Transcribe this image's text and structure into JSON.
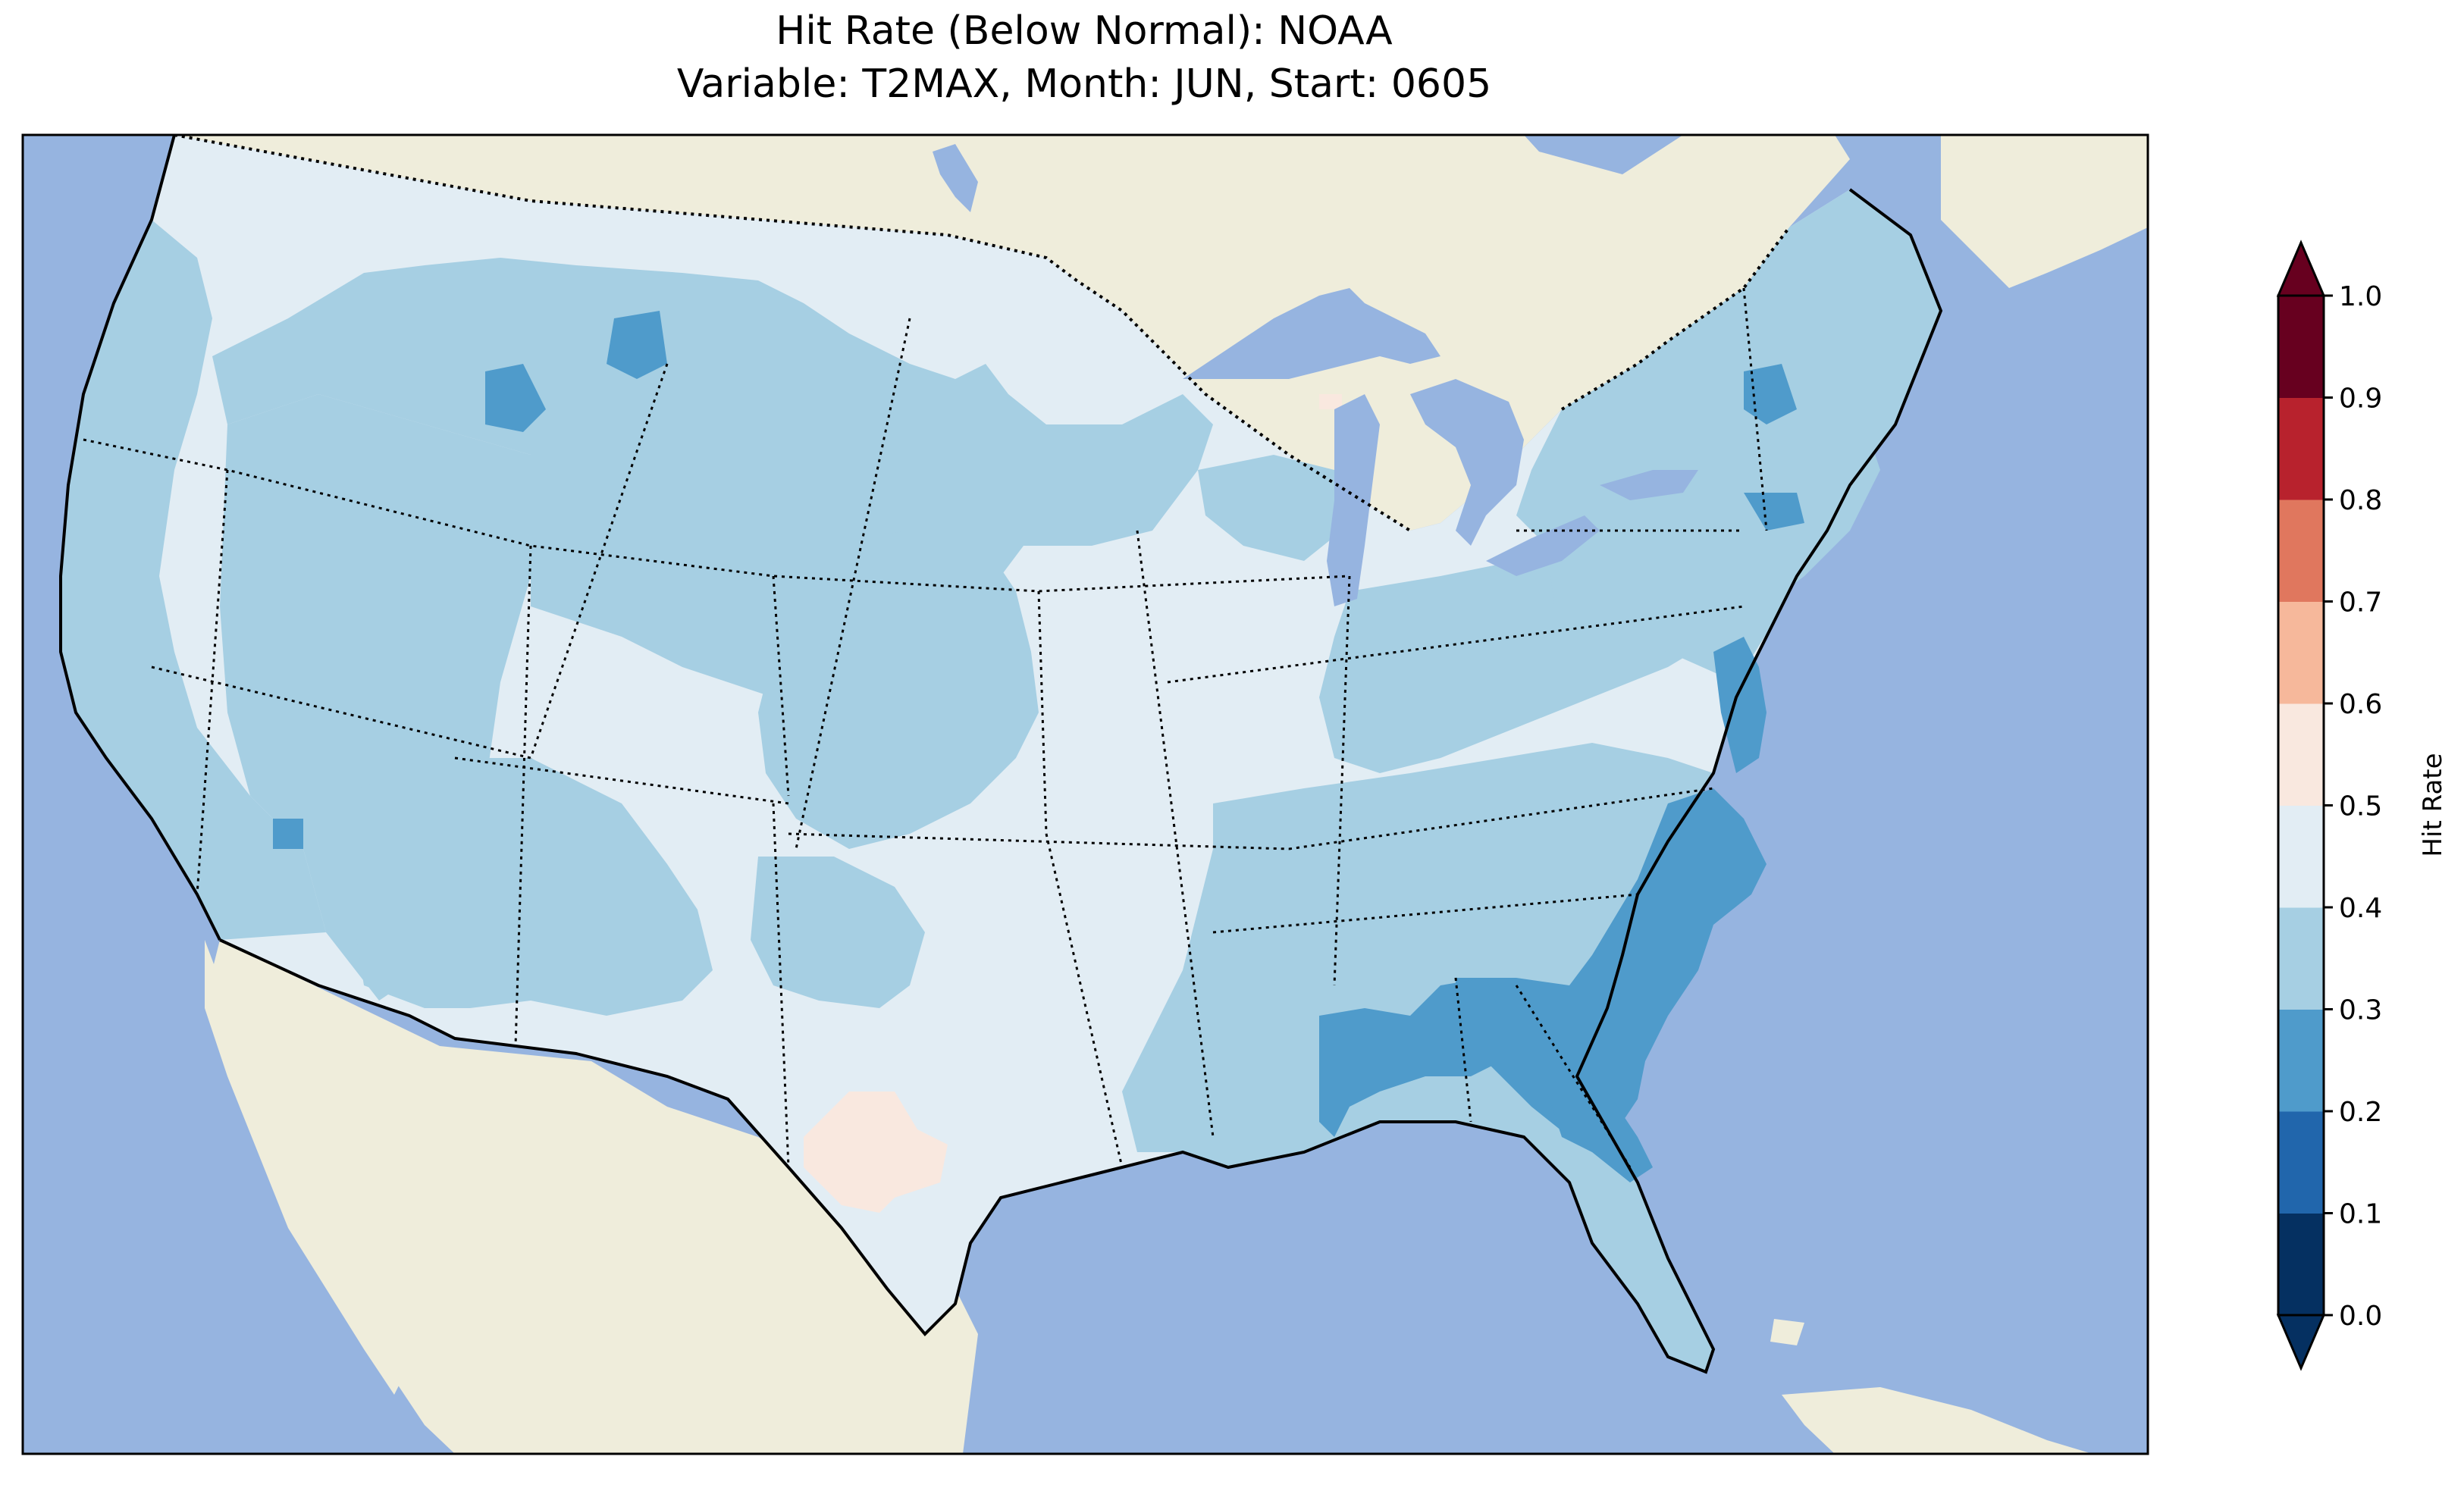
{
  "title_line1": "Hit Rate (Below Normal): NOAA",
  "title_line2": "Variable: T2MAX, Month: JUN, Start: 0605",
  "colorbar": {
    "label": "Hit Rate",
    "ticks": [
      "0.0",
      "0.1",
      "0.2",
      "0.3",
      "0.4",
      "0.5",
      "0.6",
      "0.7",
      "0.8",
      "0.9",
      "1.0"
    ],
    "colors": [
      "#053061",
      "#2166ac",
      "#4393c3",
      "#92c5de",
      "#d1e5f0",
      "#f7f7f7",
      "#fddbc7",
      "#f4a582",
      "#d6604d",
      "#b2182b",
      "#67001f"
    ],
    "bins": [
      {
        "range": "0.0-0.1",
        "color": "#053061"
      },
      {
        "range": "0.1-0.2",
        "color": "#2166ac"
      },
      {
        "range": "0.2-0.3",
        "color": "#4f9bcb"
      },
      {
        "range": "0.3-0.4",
        "color": "#a6cfe3"
      },
      {
        "range": "0.4-0.5",
        "color": "#e2edf4"
      },
      {
        "range": "0.5-0.6",
        "color": "#f9e8df"
      },
      {
        "range": "0.6-0.7",
        "color": "#f6b89b"
      },
      {
        "range": "0.7-0.8",
        "color": "#e0775e"
      },
      {
        "range": "0.8-0.9",
        "color": "#b8222d"
      },
      {
        "range": "0.9-1.0",
        "color": "#67001f"
      }
    ],
    "under_color": "#053061",
    "over_color": "#67001f"
  },
  "map": {
    "ocean_color": "#96b4e0",
    "land_color": "#efeddb",
    "regions": [
      {
        "name": "west-coast-band",
        "category": "0.3-0.4"
      },
      {
        "name": "pacific-northwest",
        "category": "0.4-0.5"
      },
      {
        "name": "great-basin",
        "category": "0.3-0.4"
      },
      {
        "name": "northern-rockies",
        "category": "0.3-0.4"
      },
      {
        "name": "montana-spot",
        "category": "0.2-0.3"
      },
      {
        "name": "idaho-spot",
        "category": "0.2-0.3"
      },
      {
        "name": "central-plains",
        "category": "0.4-0.5"
      },
      {
        "name": "west-texas",
        "category": "0.5-0.6"
      },
      {
        "name": "southeast",
        "category": "0.3-0.4"
      },
      {
        "name": "georgia-carolinas",
        "category": "0.2-0.3"
      },
      {
        "name": "mid-atlantic",
        "category": "0.2-0.3"
      },
      {
        "name": "northeast",
        "category": "0.3-0.4"
      },
      {
        "name": "new-york-spot",
        "category": "0.2-0.3"
      },
      {
        "name": "upper-michigan-spot",
        "category": "0.5-0.6"
      },
      {
        "name": "florida-peninsula",
        "category": "0.3-0.4"
      }
    ]
  }
}
